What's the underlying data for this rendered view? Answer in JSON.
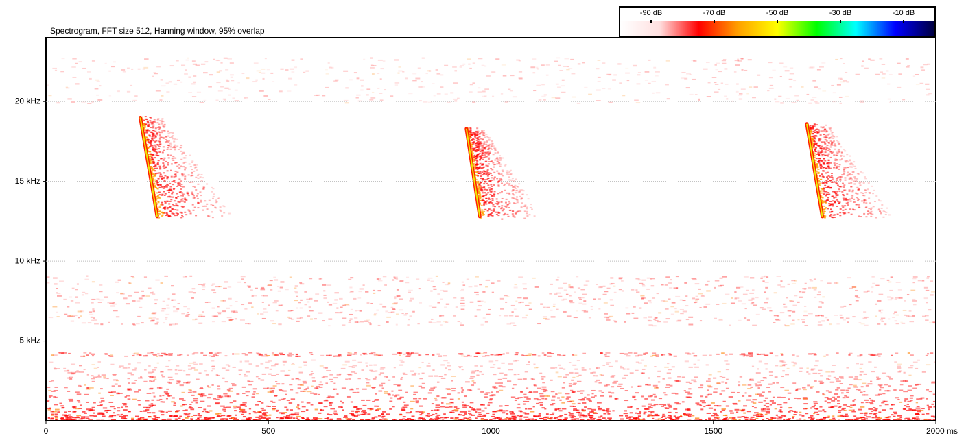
{
  "chart_data": {
    "type": "spectrogram",
    "title": "Spectrogram, FFT size 512, Hanning window, 95% overlap",
    "xlim": [
      0,
      2000
    ],
    "xticks": [
      0,
      500,
      1000,
      1500,
      {
        "value": 2000,
        "label": "2000 ms"
      }
    ],
    "ylim": [
      0,
      24
    ],
    "yticks": [
      {
        "value": 5,
        "label": "5 kHz"
      },
      {
        "value": 10,
        "label": "10 kHz"
      },
      {
        "value": 15,
        "label": "15 kHz"
      },
      {
        "value": 20,
        "label": "20 kHz"
      }
    ],
    "grid": true,
    "calls": [
      {
        "t": [
          212,
          250
        ],
        "f": [
          19,
          12.8
        ]
      },
      {
        "t": [
          945,
          975
        ],
        "f": [
          18.3,
          12.8
        ]
      },
      {
        "t": [
          1710,
          1745
        ],
        "f": [
          18.6,
          12.8
        ]
      }
    ],
    "colorbar": {
      "clim": [
        -100,
        0
      ],
      "ticks": [
        {
          "value": -90,
          "label": "-90 dB"
        },
        {
          "value": -70,
          "label": "-70 dB"
        },
        {
          "value": -50,
          "label": "-50 dB"
        },
        {
          "value": -30,
          "label": "-30 dB"
        },
        {
          "value": -10,
          "label": "-10 dB"
        }
      ],
      "colormap": [
        "#ffffff",
        "#ffe0e0",
        "#ff0000",
        "#ffa000",
        "#ffff00",
        "#00ff00",
        "#00ffff",
        "#0000ff",
        "#000040"
      ]
    }
  }
}
